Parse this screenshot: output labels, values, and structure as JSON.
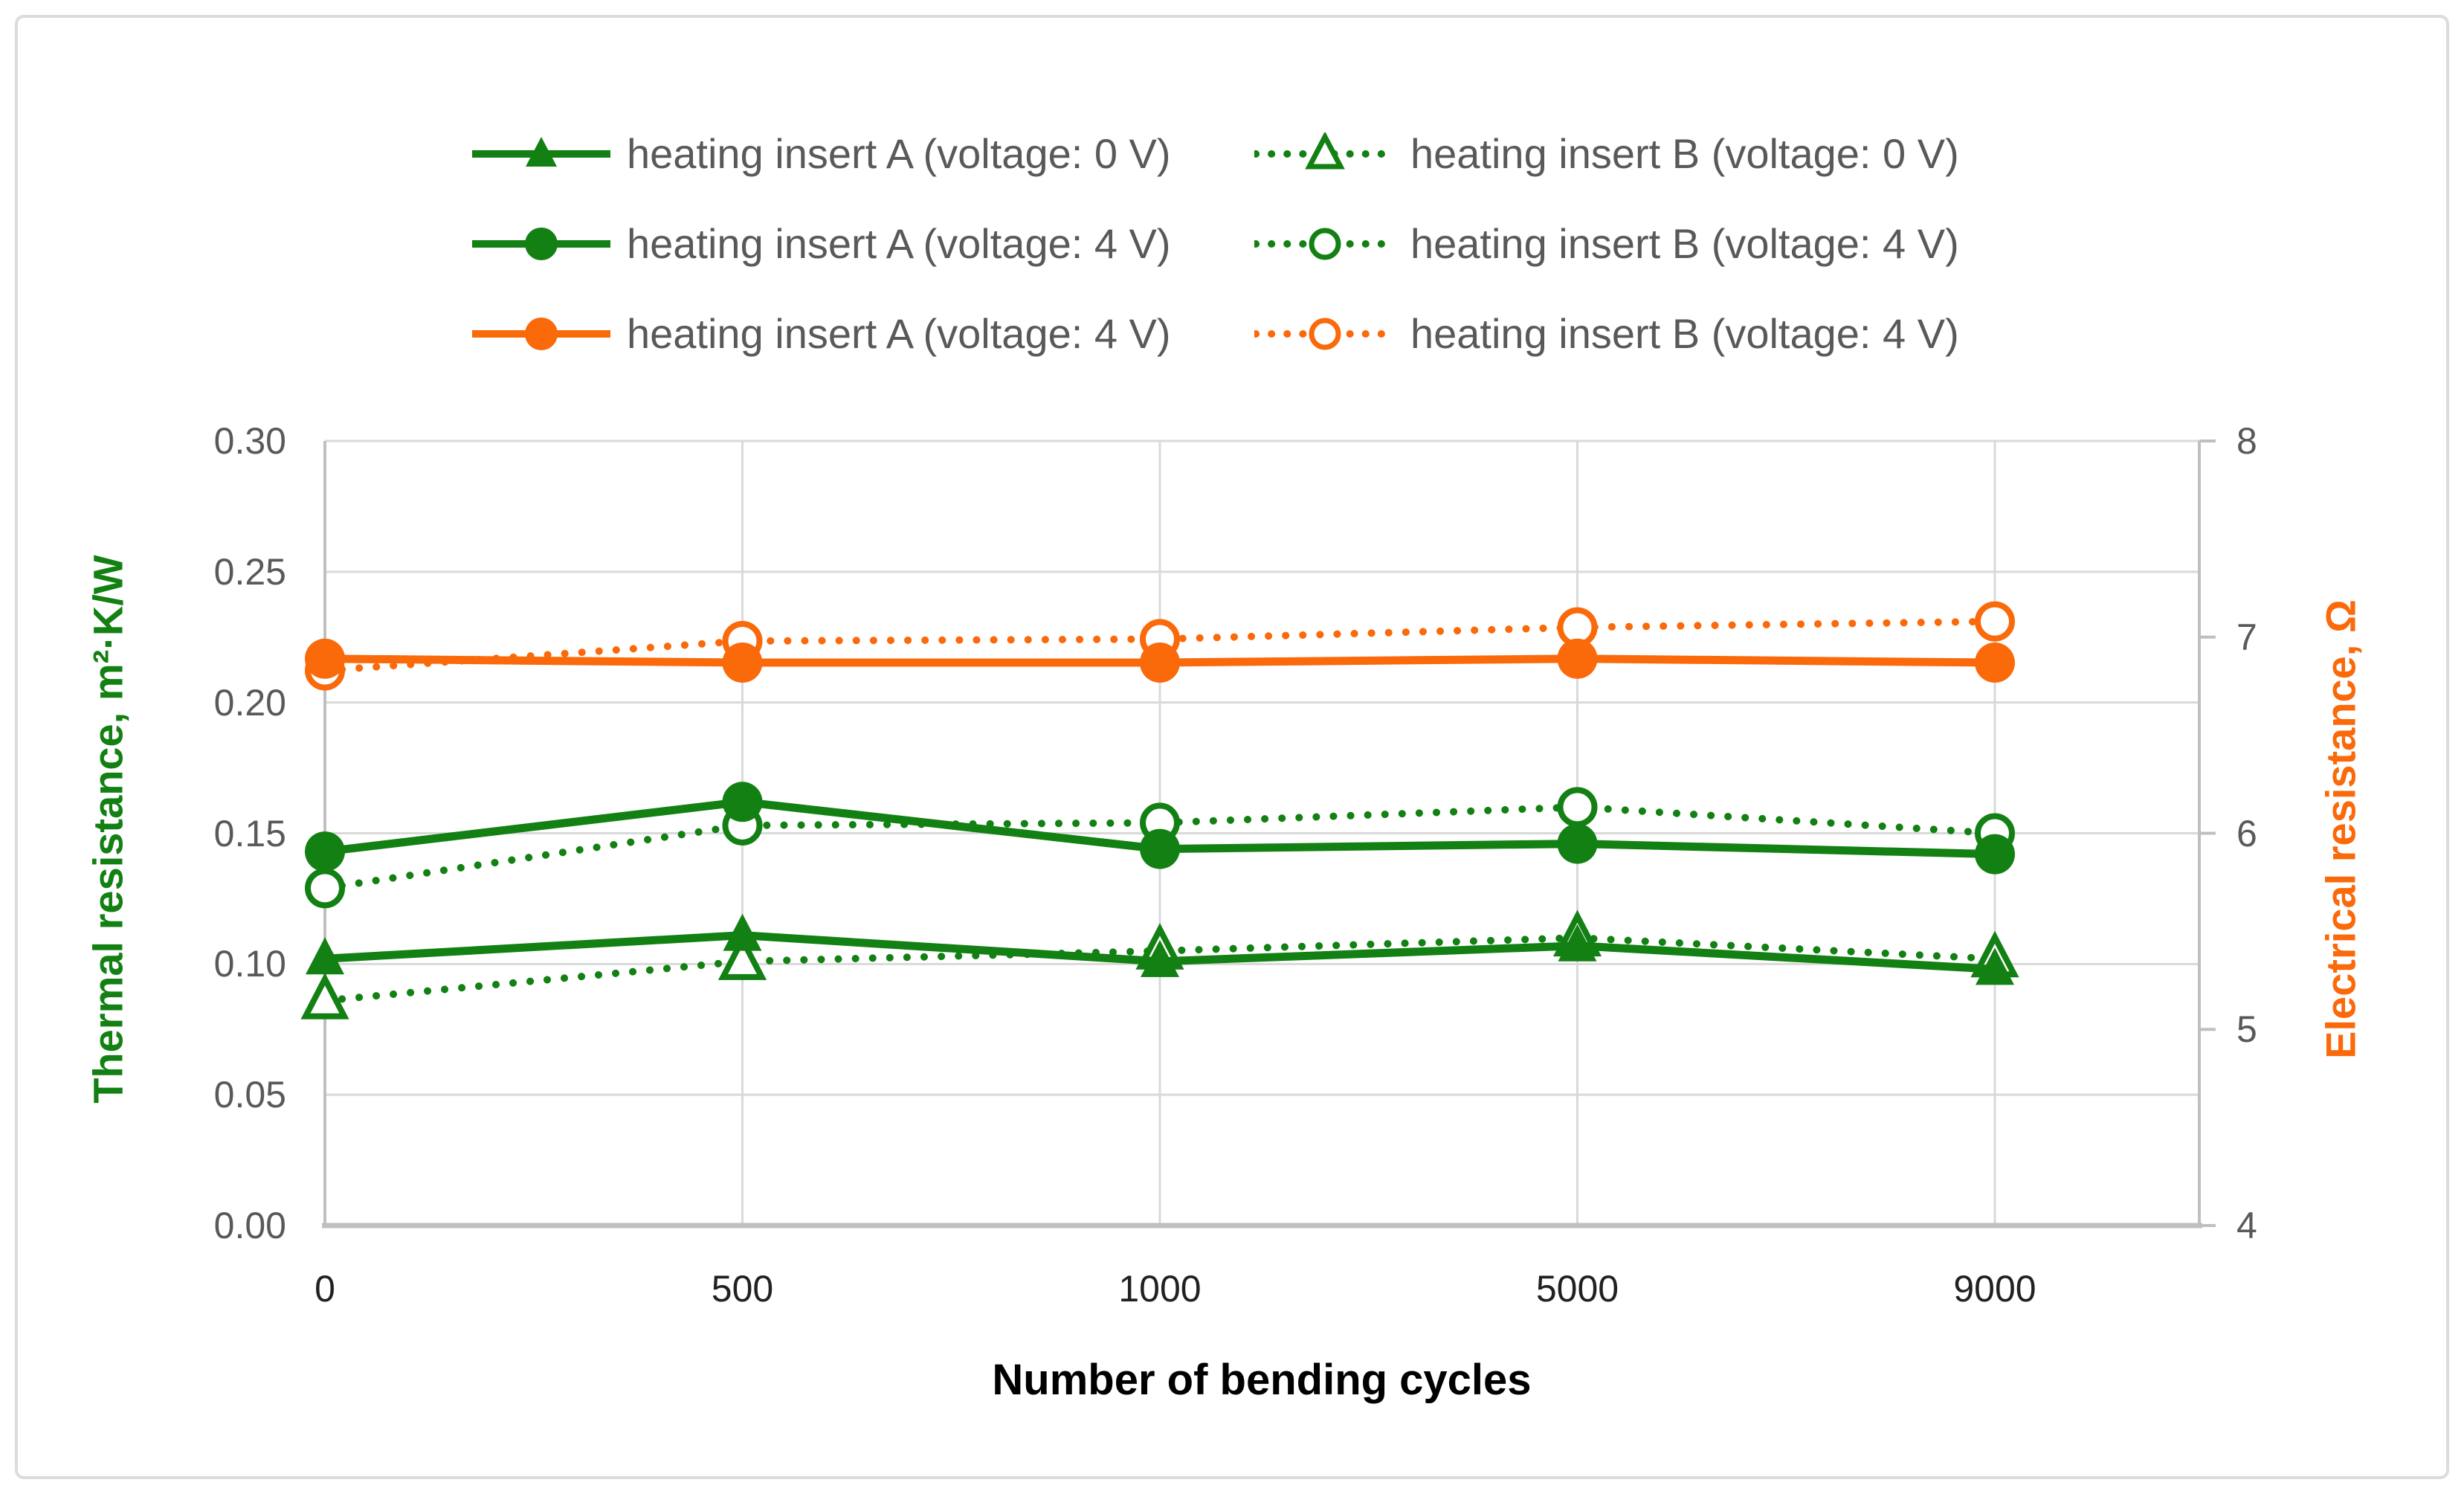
{
  "chart_data": {
    "type": "line",
    "title": "",
    "categories": [
      "0",
      "500",
      "1000",
      "5000",
      "9000"
    ],
    "x_axis_title": "Number of bending cycles",
    "left_axis": {
      "title": "Thermal resistance, m²·K/W",
      "min": 0.0,
      "max": 0.3,
      "step": 0.05,
      "tick_labels": [
        "0.00",
        "0.05",
        "0.10",
        "0.15",
        "0.20",
        "0.25",
        "0.30"
      ]
    },
    "right_axis": {
      "title": "Electrical resistance, Ω",
      "min": 4,
      "max": 8,
      "step": 1,
      "tick_labels": [
        "4",
        "5",
        "6",
        "7",
        "8"
      ]
    },
    "grid": true,
    "legend_position": "top",
    "legend_rows": [
      [
        0,
        1
      ],
      [
        2,
        3
      ],
      [
        4,
        5
      ]
    ],
    "series": [
      {
        "name": "heating insert A (voltage: 0 V)",
        "axis": "left",
        "line": "solid",
        "marker": "triangle",
        "marker_fill": "filled",
        "color_key": "green",
        "values": [
          0.102,
          0.111,
          0.101,
          0.107,
          0.098
        ]
      },
      {
        "name": "heating insert B (voltage: 0 V)",
        "axis": "left",
        "line": "dotted",
        "marker": "triangle",
        "marker_fill": "open",
        "color_key": "green",
        "values": [
          0.086,
          0.101,
          0.105,
          0.11,
          0.102
        ]
      },
      {
        "name": "heating insert A (voltage: 4 V)",
        "axis": "left",
        "line": "solid",
        "marker": "circle",
        "marker_fill": "filled",
        "color_key": "green",
        "values": [
          0.143,
          0.162,
          0.144,
          0.146,
          0.142
        ]
      },
      {
        "name": "heating insert B (voltage: 4 V)",
        "axis": "left",
        "line": "dotted",
        "marker": "circle",
        "marker_fill": "open",
        "color_key": "green",
        "values": [
          0.129,
          0.153,
          0.154,
          0.16,
          0.15
        ]
      },
      {
        "name": "heating insert A (voltage: 4 V)",
        "axis": "right",
        "line": "solid",
        "marker": "circle",
        "marker_fill": "filled",
        "color_key": "orange",
        "values": [
          6.89,
          6.87,
          6.87,
          6.89,
          6.87
        ]
      },
      {
        "name": "heating insert B (voltage: 4 V)",
        "axis": "right",
        "line": "dotted",
        "marker": "circle",
        "marker_fill": "open",
        "color_key": "orange",
        "values": [
          6.83,
          6.98,
          6.99,
          7.05,
          7.08
        ]
      }
    ]
  },
  "styles": {
    "green": "#138013",
    "orange": "#FA690A",
    "gridline": "#D9D9D9",
    "axis_line": "#BFBFBF",
    "tick_text": "#595959",
    "x_tick_text": "#212121",
    "x_title_text": "#000000",
    "legend_text": "#595959",
    "frame_border": "#DBDBDB",
    "background": "#FFFFFF"
  }
}
